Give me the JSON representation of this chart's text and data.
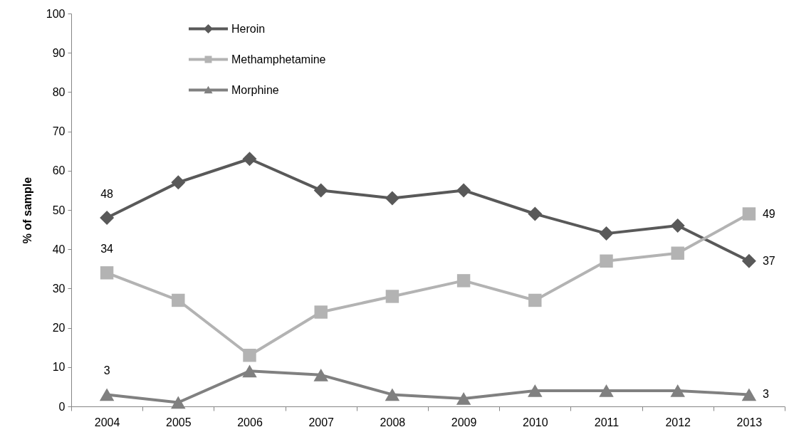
{
  "chart_data": {
    "type": "line",
    "ylabel": "% of sample",
    "categories": [
      "2004",
      "2005",
      "2006",
      "2007",
      "2008",
      "2009",
      "2010",
      "2011",
      "2012",
      "2013"
    ],
    "ylim": [
      0,
      100
    ],
    "yticks": [
      0,
      10,
      20,
      30,
      40,
      50,
      60,
      70,
      80,
      90,
      100
    ],
    "grid": false,
    "legend": "top left",
    "line_style": "solid",
    "series": [
      {
        "name": "Heroin",
        "color": "#595959",
        "marker": "diamond",
        "values": [
          48,
          57,
          63,
          55,
          53,
          55,
          49,
          44,
          46,
          37
        ],
        "value_labels": [
          "48",
          null,
          null,
          null,
          null,
          null,
          null,
          null,
          null,
          "37"
        ]
      },
      {
        "name": "Methamphetamine",
        "color": "#b3b3b3",
        "marker": "square",
        "values": [
          34,
          27,
          13,
          24,
          28,
          32,
          27,
          37,
          39,
          49
        ],
        "value_labels": [
          "34",
          null,
          null,
          null,
          null,
          null,
          null,
          null,
          null,
          "49"
        ]
      },
      {
        "name": "Morphine",
        "color": "#808080",
        "marker": "triangle",
        "values": [
          3,
          1,
          9,
          8,
          3,
          2,
          4,
          4,
          4,
          3
        ],
        "value_labels": [
          "3",
          null,
          null,
          null,
          null,
          null,
          null,
          null,
          null,
          "3"
        ]
      }
    ]
  }
}
